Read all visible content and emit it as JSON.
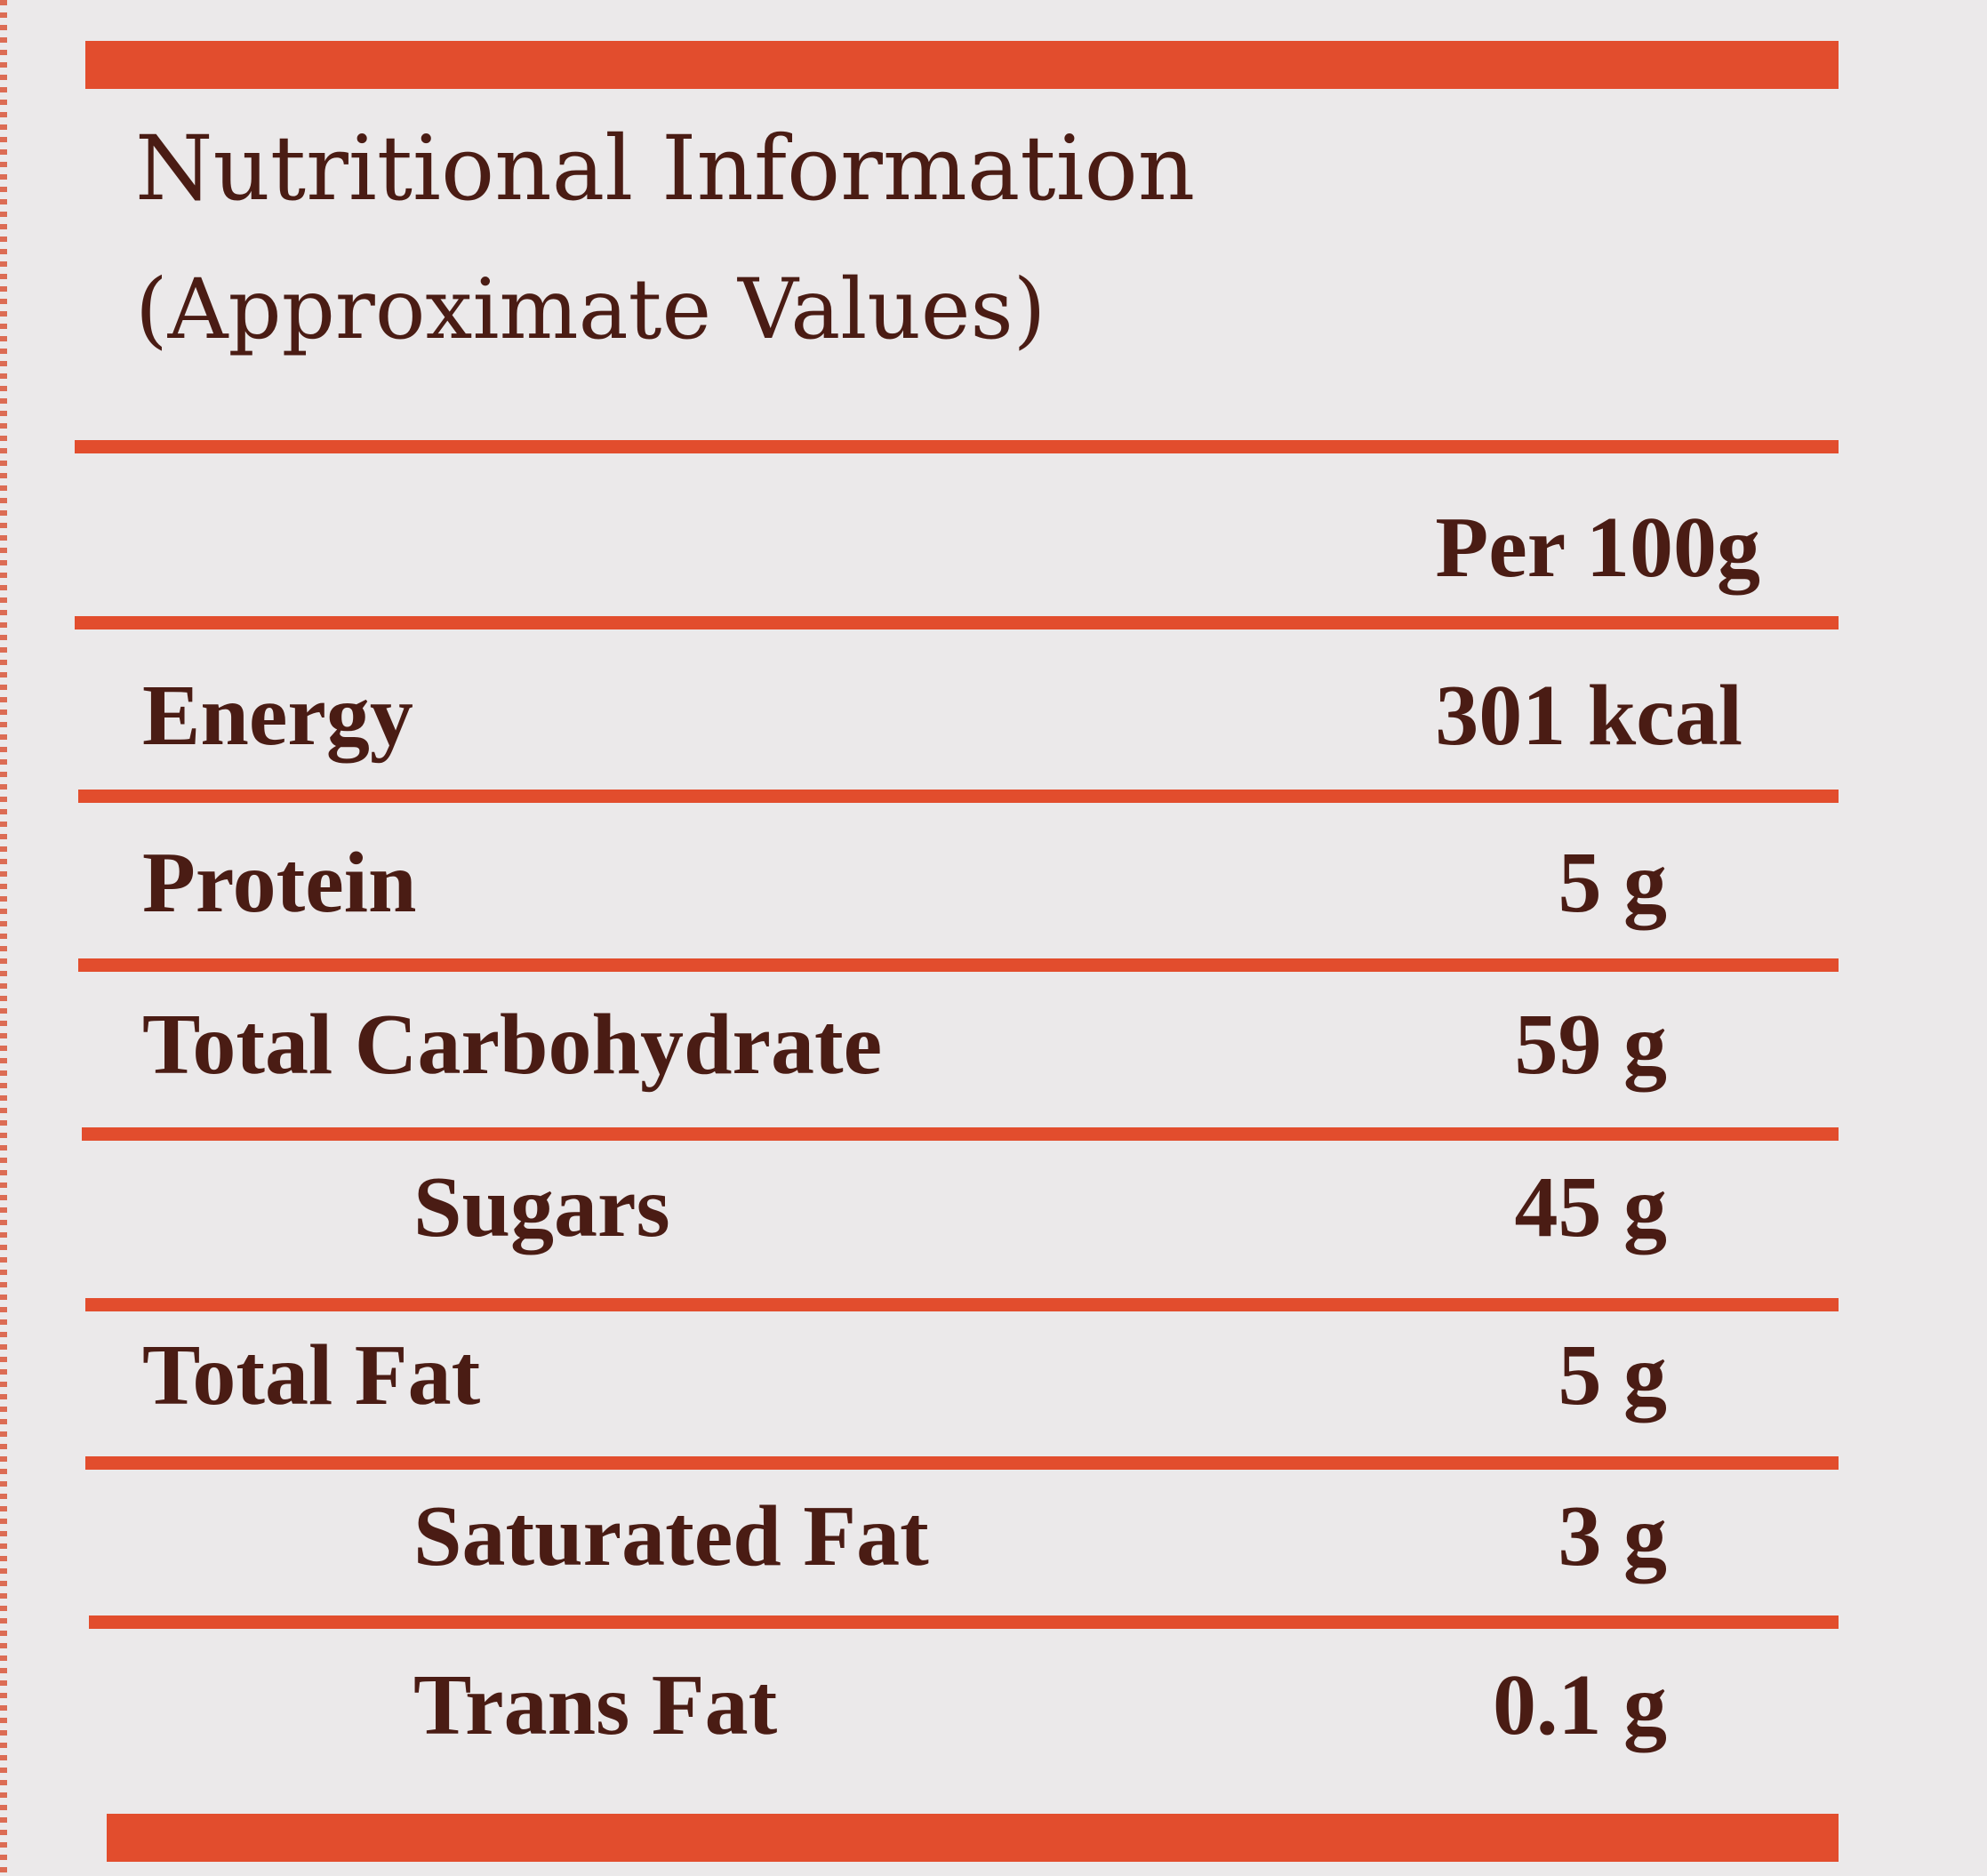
{
  "label": {
    "title_line1": "Nutritional Information",
    "title_line2": "(Approximate Values)",
    "column_header": "Per 100g",
    "rows": [
      {
        "name": "Energy",
        "value": "301 kcal",
        "indent": false
      },
      {
        "name": "Protein",
        "value": "5 g",
        "indent": false
      },
      {
        "name": "Total Carbohydrate",
        "value": "59 g",
        "indent": false
      },
      {
        "name": "Sugars",
        "value": "45 g",
        "indent": true
      },
      {
        "name": "Total Fat",
        "value": "5 g",
        "indent": false
      },
      {
        "name": "Saturated Fat",
        "value": "3 g",
        "indent": true
      },
      {
        "name": "Trans Fat",
        "value": "0.1 g",
        "indent": true
      }
    ]
  },
  "colors": {
    "accent": "#e24d2d",
    "text": "#4a1c14",
    "background": "#ebe9ea"
  }
}
